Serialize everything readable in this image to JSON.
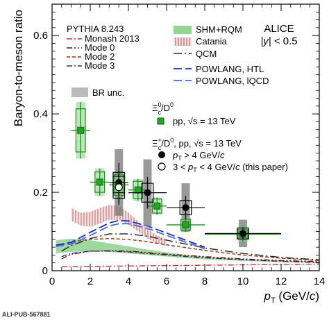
{
  "footer_label": "ALI-PUB-567881",
  "chart_data": {
    "type": "scatter",
    "xlabel_main": "p",
    "xlabel_sub": "T",
    "xlabel_unit": " (GeV/",
    "xlabel_c": "c",
    "xlabel_close": ")",
    "ylabel": "Baryon-to-meson ratio",
    "xlim": [
      0,
      14
    ],
    "ylim": [
      0,
      0.68
    ],
    "x_ticks": [
      0,
      2,
      4,
      6,
      8,
      10,
      12,
      14
    ],
    "y_ticks": [
      0,
      0.2,
      0.4,
      0.6
    ],
    "x_tick_labels": [
      "0",
      "2",
      "4",
      "6",
      "8",
      "10",
      "12",
      "14"
    ],
    "y_tick_labels": [
      "0",
      "0.2",
      "0.4",
      "0.6"
    ],
    "experiment_label": "ALICE",
    "rapidity_label_y": "|y|",
    "rapidity_label_rest": " < 0.5",
    "legend_left_title": "PYTHIA 8.243",
    "legend_br": "BR unc.",
    "xic0_label": "Ξ",
    "xic0_sup": "0",
    "xic0_sub": "c",
    "xic0_over": "/D",
    "xic0_over_sup": "0",
    "xic0_sample": "pp, ",
    "xic0_sqrt": "√s",
    "xic0_energy": " = 13 TeV",
    "xicp_label": "Ξ",
    "xicp_sup": "+",
    "xicp_sub": "c",
    "xicp_over": "/D",
    "xicp_over_sup": "0",
    "xicp_sample": ", pp, ",
    "xicp_sqrt": "√s",
    "xicp_energy": " = 13 TeV",
    "xicp_high_p": "p",
    "xicp_high_T": "T",
    "xicp_high_rest": " > 4 GeV/",
    "xicp_high_c": "c",
    "xicp_low_pre": "3 < ",
    "xicp_low_p": "p",
    "xicp_low_T": "T",
    "xicp_low_rest": " < 4 GeV/",
    "xicp_low_c": "c",
    "xicp_low_post": " (this paper)",
    "colors": {
      "xic0": "#1a8f1a",
      "xic0_fill": "#22a522",
      "xic0_band": "#7fd37f",
      "br_unc": "#999999",
      "monash": "#cc3333",
      "mode0": "#661111",
      "mode2": "#993311",
      "mode3": "#442266",
      "shm": "#7fcc7f",
      "catania": "#c98a8a",
      "qcm": "#222222",
      "powlang_htl": "#1a2ebf",
      "powlang_lqcd": "#4466ee"
    },
    "models": [
      {
        "name": "Monash 2013",
        "style": "dashdot",
        "color_key": "monash",
        "x": [
          0.5,
          2,
          4,
          6,
          8,
          10,
          12,
          14
        ],
        "y": [
          0.01,
          0.011,
          0.012,
          0.013,
          0.014,
          0.015,
          0.016,
          0.017
        ]
      },
      {
        "name": "Mode 0",
        "style": "dashdotdot",
        "color_key": "mode0",
        "x": [
          0.5,
          1,
          2,
          3,
          4,
          5,
          6,
          8,
          10,
          12,
          14
        ],
        "y": [
          0.03,
          0.042,
          0.05,
          0.051,
          0.05,
          0.046,
          0.042,
          0.036,
          0.03,
          0.026,
          0.023
        ]
      },
      {
        "name": "Mode 2",
        "style": "dashed",
        "color_key": "mode2",
        "x": [
          0.5,
          1,
          2,
          3,
          4,
          5,
          6,
          8,
          10,
          12,
          14
        ],
        "y": [
          0.066,
          0.074,
          0.08,
          0.082,
          0.08,
          0.074,
          0.066,
          0.052,
          0.04,
          0.032,
          0.026
        ]
      },
      {
        "name": "Mode 3",
        "style": "dashdot",
        "color_key": "mode3",
        "x": [
          0.5,
          1,
          2,
          3,
          4,
          5,
          6,
          8,
          10,
          12,
          14
        ],
        "y": [
          0.036,
          0.044,
          0.05,
          0.05,
          0.048,
          0.044,
          0.04,
          0.033,
          0.028,
          0.024,
          0.021
        ]
      },
      {
        "name": "QCM",
        "style": "longdashdot",
        "color_key": "qcm",
        "x": [
          0.5,
          1,
          2,
          3,
          4,
          5,
          6,
          7,
          8,
          10,
          12,
          14
        ],
        "y": [
          0.05,
          0.064,
          0.082,
          0.094,
          0.094,
          0.088,
          0.078,
          0.068,
          0.058,
          0.044,
          0.034,
          0.028
        ]
      },
      {
        "name": "POWLANG, HTL",
        "style": "longdash",
        "color_key": "powlang_htl",
        "x": [
          0.2,
          1,
          2,
          3,
          3.5,
          4,
          5,
          6,
          7,
          8
        ],
        "y": [
          0.065,
          0.072,
          0.098,
          0.122,
          0.128,
          0.127,
          0.114,
          0.096,
          0.078,
          0.06
        ]
      },
      {
        "name": "POWLANG, lQCD",
        "style": "longdash",
        "color_key": "powlang_lqcd",
        "x": [
          0.2,
          1,
          2,
          3,
          3.5,
          4,
          5,
          6,
          7,
          8
        ],
        "y": [
          0.062,
          0.068,
          0.09,
          0.114,
          0.12,
          0.12,
          0.108,
          0.09,
          0.073,
          0.056
        ]
      }
    ],
    "bands": [
      {
        "name": "SHM+RQM",
        "color_key": "shm",
        "x": [
          0.2,
          1,
          2,
          3,
          4,
          5,
          6,
          7,
          8,
          10,
          12,
          14
        ],
        "lo": [
          0.044,
          0.048,
          0.05,
          0.048,
          0.044,
          0.04,
          0.036,
          0.032,
          0.029,
          0.025,
          0.022,
          0.02
        ],
        "hi": [
          0.078,
          0.082,
          0.078,
          0.07,
          0.062,
          0.054,
          0.047,
          0.041,
          0.036,
          0.03,
          0.026,
          0.023
        ]
      },
      {
        "name": "Catania",
        "color_key": "catania",
        "x": [
          1,
          1.5,
          2,
          2.5,
          3,
          3.5,
          4,
          4.5,
          5,
          5.5,
          6
        ],
        "lo": [
          0.128,
          0.115,
          0.112,
          0.12,
          0.13,
          0.13,
          0.118,
          0.1,
          0.082,
          0.07,
          0.062
        ],
        "hi": [
          0.16,
          0.148,
          0.15,
          0.16,
          0.168,
          0.165,
          0.148,
          0.126,
          0.106,
          0.09,
          0.08
        ]
      }
    ],
    "xic0_points": [
      {
        "x": 1.5,
        "y": 0.358,
        "xerr": 0.5,
        "stat": 0.072,
        "syst": 0.055
      },
      {
        "x": 2.5,
        "y": 0.226,
        "xerr": 0.5,
        "stat": 0.035,
        "syst": 0.026
      },
      {
        "x": 3.5,
        "y": 0.219,
        "xerr": 0.5,
        "stat": 0.03,
        "syst": 0.027
      },
      {
        "x": 4.5,
        "y": 0.206,
        "xerr": 0.5,
        "stat": 0.028,
        "syst": 0.022
      },
      {
        "x": 5.5,
        "y": 0.165,
        "xerr": 0.5,
        "stat": 0.022,
        "syst": 0.018
      },
      {
        "x": 7.0,
        "y": 0.117,
        "xerr": 1.0,
        "stat": 0.018,
        "syst": 0.014
      },
      {
        "x": 10.0,
        "y": 0.093,
        "xerr": 2.0,
        "stat": 0.02,
        "syst": 0.012
      }
    ],
    "xicp_points_high": [
      {
        "x": 3.5,
        "y": 0.225,
        "xerr": 0.5,
        "stat": 0.05,
        "syst": 0.026,
        "br": 0.085
      },
      {
        "x": 5.0,
        "y": 0.199,
        "xerr": 1.0,
        "stat": 0.04,
        "syst": 0.024,
        "br": 0.085
      },
      {
        "x": 7.0,
        "y": 0.161,
        "xerr": 1.0,
        "stat": 0.03,
        "syst": 0.018,
        "br": 0.062
      },
      {
        "x": 10.0,
        "y": 0.095,
        "xerr": 2.0,
        "stat": 0.015,
        "syst": 0.014,
        "br": 0.035
      }
    ],
    "xicp_points_low": [
      {
        "x": 3.5,
        "y": 0.213,
        "xerr": 0.5,
        "stat": 0.045,
        "syst": 0.028
      }
    ]
  }
}
